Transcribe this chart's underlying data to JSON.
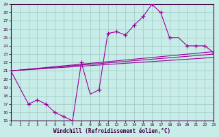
{
  "xlabel": "Windchill (Refroidissement éolien,°C)",
  "bg_color": "#c8ece8",
  "grid_color": "#9ec8c4",
  "line_color": "#990099",
  "xlim": [
    0,
    23
  ],
  "ylim": [
    15,
    29
  ],
  "xticks": [
    0,
    1,
    2,
    3,
    4,
    5,
    6,
    7,
    8,
    9,
    10,
    11,
    12,
    13,
    14,
    15,
    16,
    17,
    18,
    19,
    20,
    21,
    22,
    23
  ],
  "yticks": [
    15,
    16,
    17,
    18,
    19,
    20,
    21,
    22,
    23,
    24,
    25,
    26,
    27,
    28,
    29
  ],
  "straight_lines": [
    {
      "x": [
        0,
        23
      ],
      "y": [
        21.0,
        23.3
      ]
    },
    {
      "x": [
        0,
        23
      ],
      "y": [
        21.0,
        23.0
      ]
    },
    {
      "x": [
        0,
        23
      ],
      "y": [
        21.0,
        22.6
      ]
    }
  ],
  "main_x": [
    0,
    2,
    3,
    4,
    5,
    6,
    7,
    8,
    9,
    10,
    11,
    12,
    13,
    14,
    15,
    16,
    17,
    18,
    19,
    20,
    21,
    22,
    23
  ],
  "main_y": [
    21.0,
    17.0,
    17.5,
    17.0,
    16.0,
    15.5,
    15.0,
    22.0,
    18.2,
    18.7,
    25.5,
    25.7,
    25.3,
    26.5,
    27.5,
    29.0,
    28.0,
    25.0,
    25.0,
    24.0,
    24.0,
    24.0,
    23.2
  ],
  "marker_x": [
    2,
    3,
    4,
    5,
    6,
    7,
    8,
    10,
    11,
    12,
    13,
    14,
    15,
    16,
    17,
    18,
    20,
    21,
    22,
    23
  ],
  "marker_y": [
    17.0,
    17.5,
    17.0,
    16.0,
    15.5,
    15.0,
    22.0,
    18.7,
    25.5,
    25.7,
    25.3,
    26.5,
    27.5,
    29.0,
    28.0,
    25.0,
    24.0,
    24.0,
    24.0,
    23.2
  ]
}
